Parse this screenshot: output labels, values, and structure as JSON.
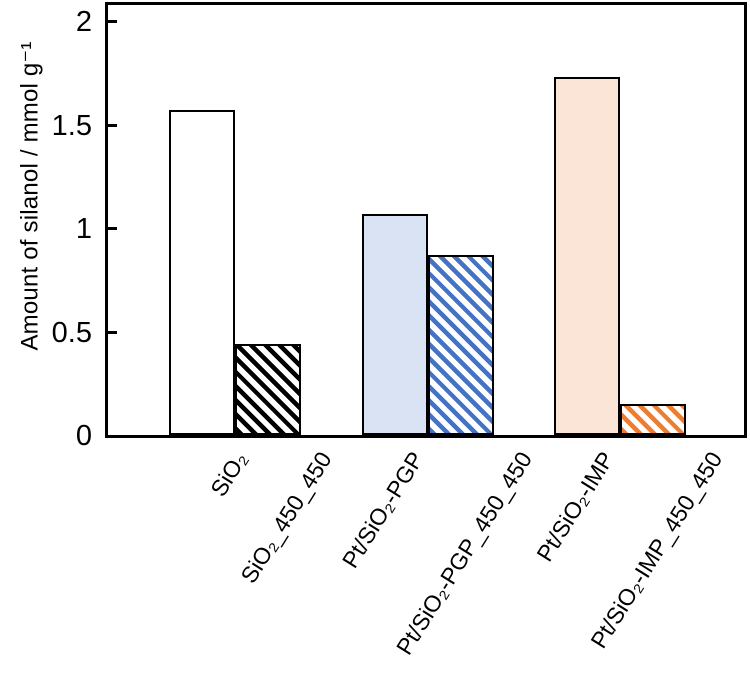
{
  "chart_data": {
    "type": "bar",
    "title": "",
    "xlabel": "",
    "ylabel": "Amount of silanol / mmol g⁻¹",
    "categories": [
      "SiO₂",
      "SiO₂_450_450",
      "Pt/SiO₂-PGP",
      "Pt/SiO₂-PGP_450_450",
      "Pt/SiO₂-IMP",
      "Pt/SiO₂-IMP_450_450"
    ],
    "values": [
      1.57,
      0.44,
      1.07,
      0.87,
      1.73,
      0.15
    ],
    "ylim": [
      0,
      2
    ],
    "yticks": [
      "0",
      "0.5",
      "1",
      "1.5",
      "2"
    ],
    "ytick_values": [
      0,
      0.5,
      1,
      1.5,
      2
    ],
    "grid": false,
    "legend": "none",
    "frame": true,
    "axis_color": "#000000",
    "bar_styles": [
      {
        "fill": "#ffffff",
        "pattern": "none",
        "pattern_color": null,
        "border": "#000000"
      },
      {
        "fill": "#ffffff",
        "pattern": "diagonal-stripes",
        "pattern_color": "#000000",
        "border": "#000000"
      },
      {
        "fill": "#dae3f3",
        "pattern": "none",
        "pattern_color": null,
        "border": "#000000"
      },
      {
        "fill": "#ffffff",
        "pattern": "diagonal-stripes",
        "pattern_color": "#4472c4",
        "border": "#000000"
      },
      {
        "fill": "#fbe5d6",
        "pattern": "none",
        "pattern_color": null,
        "border": "#000000"
      },
      {
        "fill": "#ffffff",
        "pattern": "diagonal-stripes",
        "pattern_color": "#ed7d31",
        "border": "#000000"
      }
    ]
  }
}
